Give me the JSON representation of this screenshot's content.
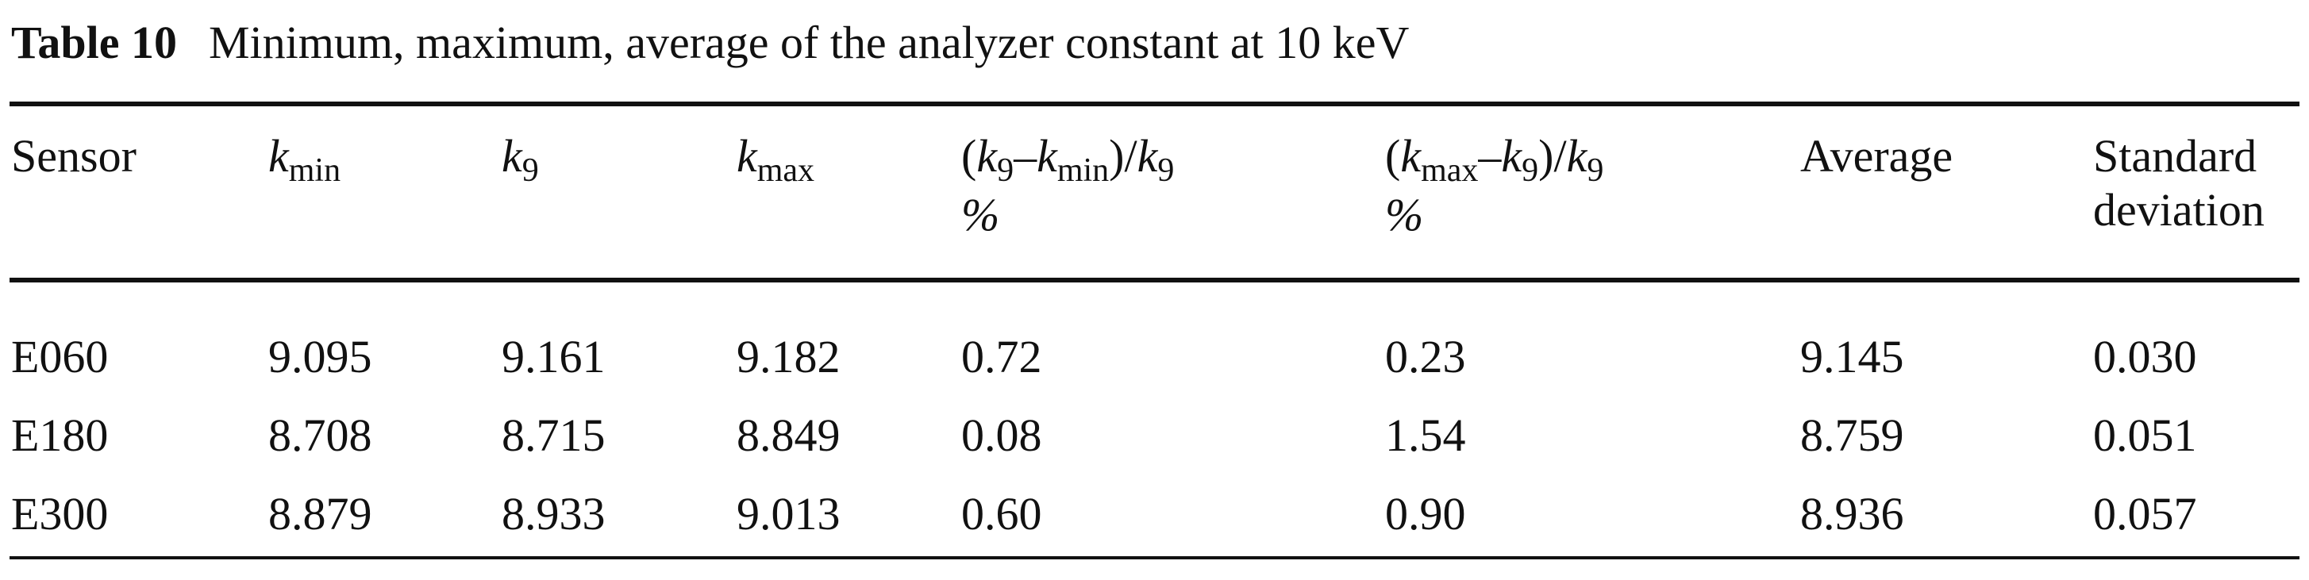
{
  "caption": {
    "label": "Table 10",
    "text": "Minimum, maximum, average of the analyzer constant at 10 keV"
  },
  "header": {
    "sensor": "Sensor",
    "kmin": {
      "base": "k",
      "sub": "min"
    },
    "k9": {
      "base": "k",
      "sub": "9"
    },
    "kmax": {
      "base": "k",
      "sub": "max"
    },
    "col4": {
      "open": "(",
      "k_a": "k",
      "k_a_sub": "9",
      "dash": "–",
      "k_b": "k",
      "k_b_sub": "min",
      "close_slash": ")/",
      "k_c": "k",
      "k_c_sub": "9",
      "unit": "%"
    },
    "col5": {
      "open": "(",
      "k_a": "k",
      "k_a_sub": "max",
      "dash": "–",
      "k_b": "k",
      "k_b_sub": "9",
      "close_slash": ")/",
      "k_c": "k",
      "k_c_sub": "9",
      "unit": "%"
    },
    "average": "Average",
    "std_line1": "Standard",
    "std_line2": "deviation"
  },
  "rows": [
    {
      "sensor": "E060",
      "kmin": "9.095",
      "k9": "9.161",
      "kmax": "9.182",
      "pct_low": "0.72",
      "pct_high": "0.23",
      "average": "9.145",
      "std": "0.030"
    },
    {
      "sensor": "E180",
      "kmin": "8.708",
      "k9": "8.715",
      "kmax": "8.849",
      "pct_low": "0.08",
      "pct_high": "1.54",
      "average": "8.759",
      "std": "0.051"
    },
    {
      "sensor": "E300",
      "kmin": "8.879",
      "k9": "8.933",
      "kmax": "9.013",
      "pct_low": "0.60",
      "pct_high": "0.90",
      "average": "8.936",
      "std": "0.057"
    }
  ]
}
